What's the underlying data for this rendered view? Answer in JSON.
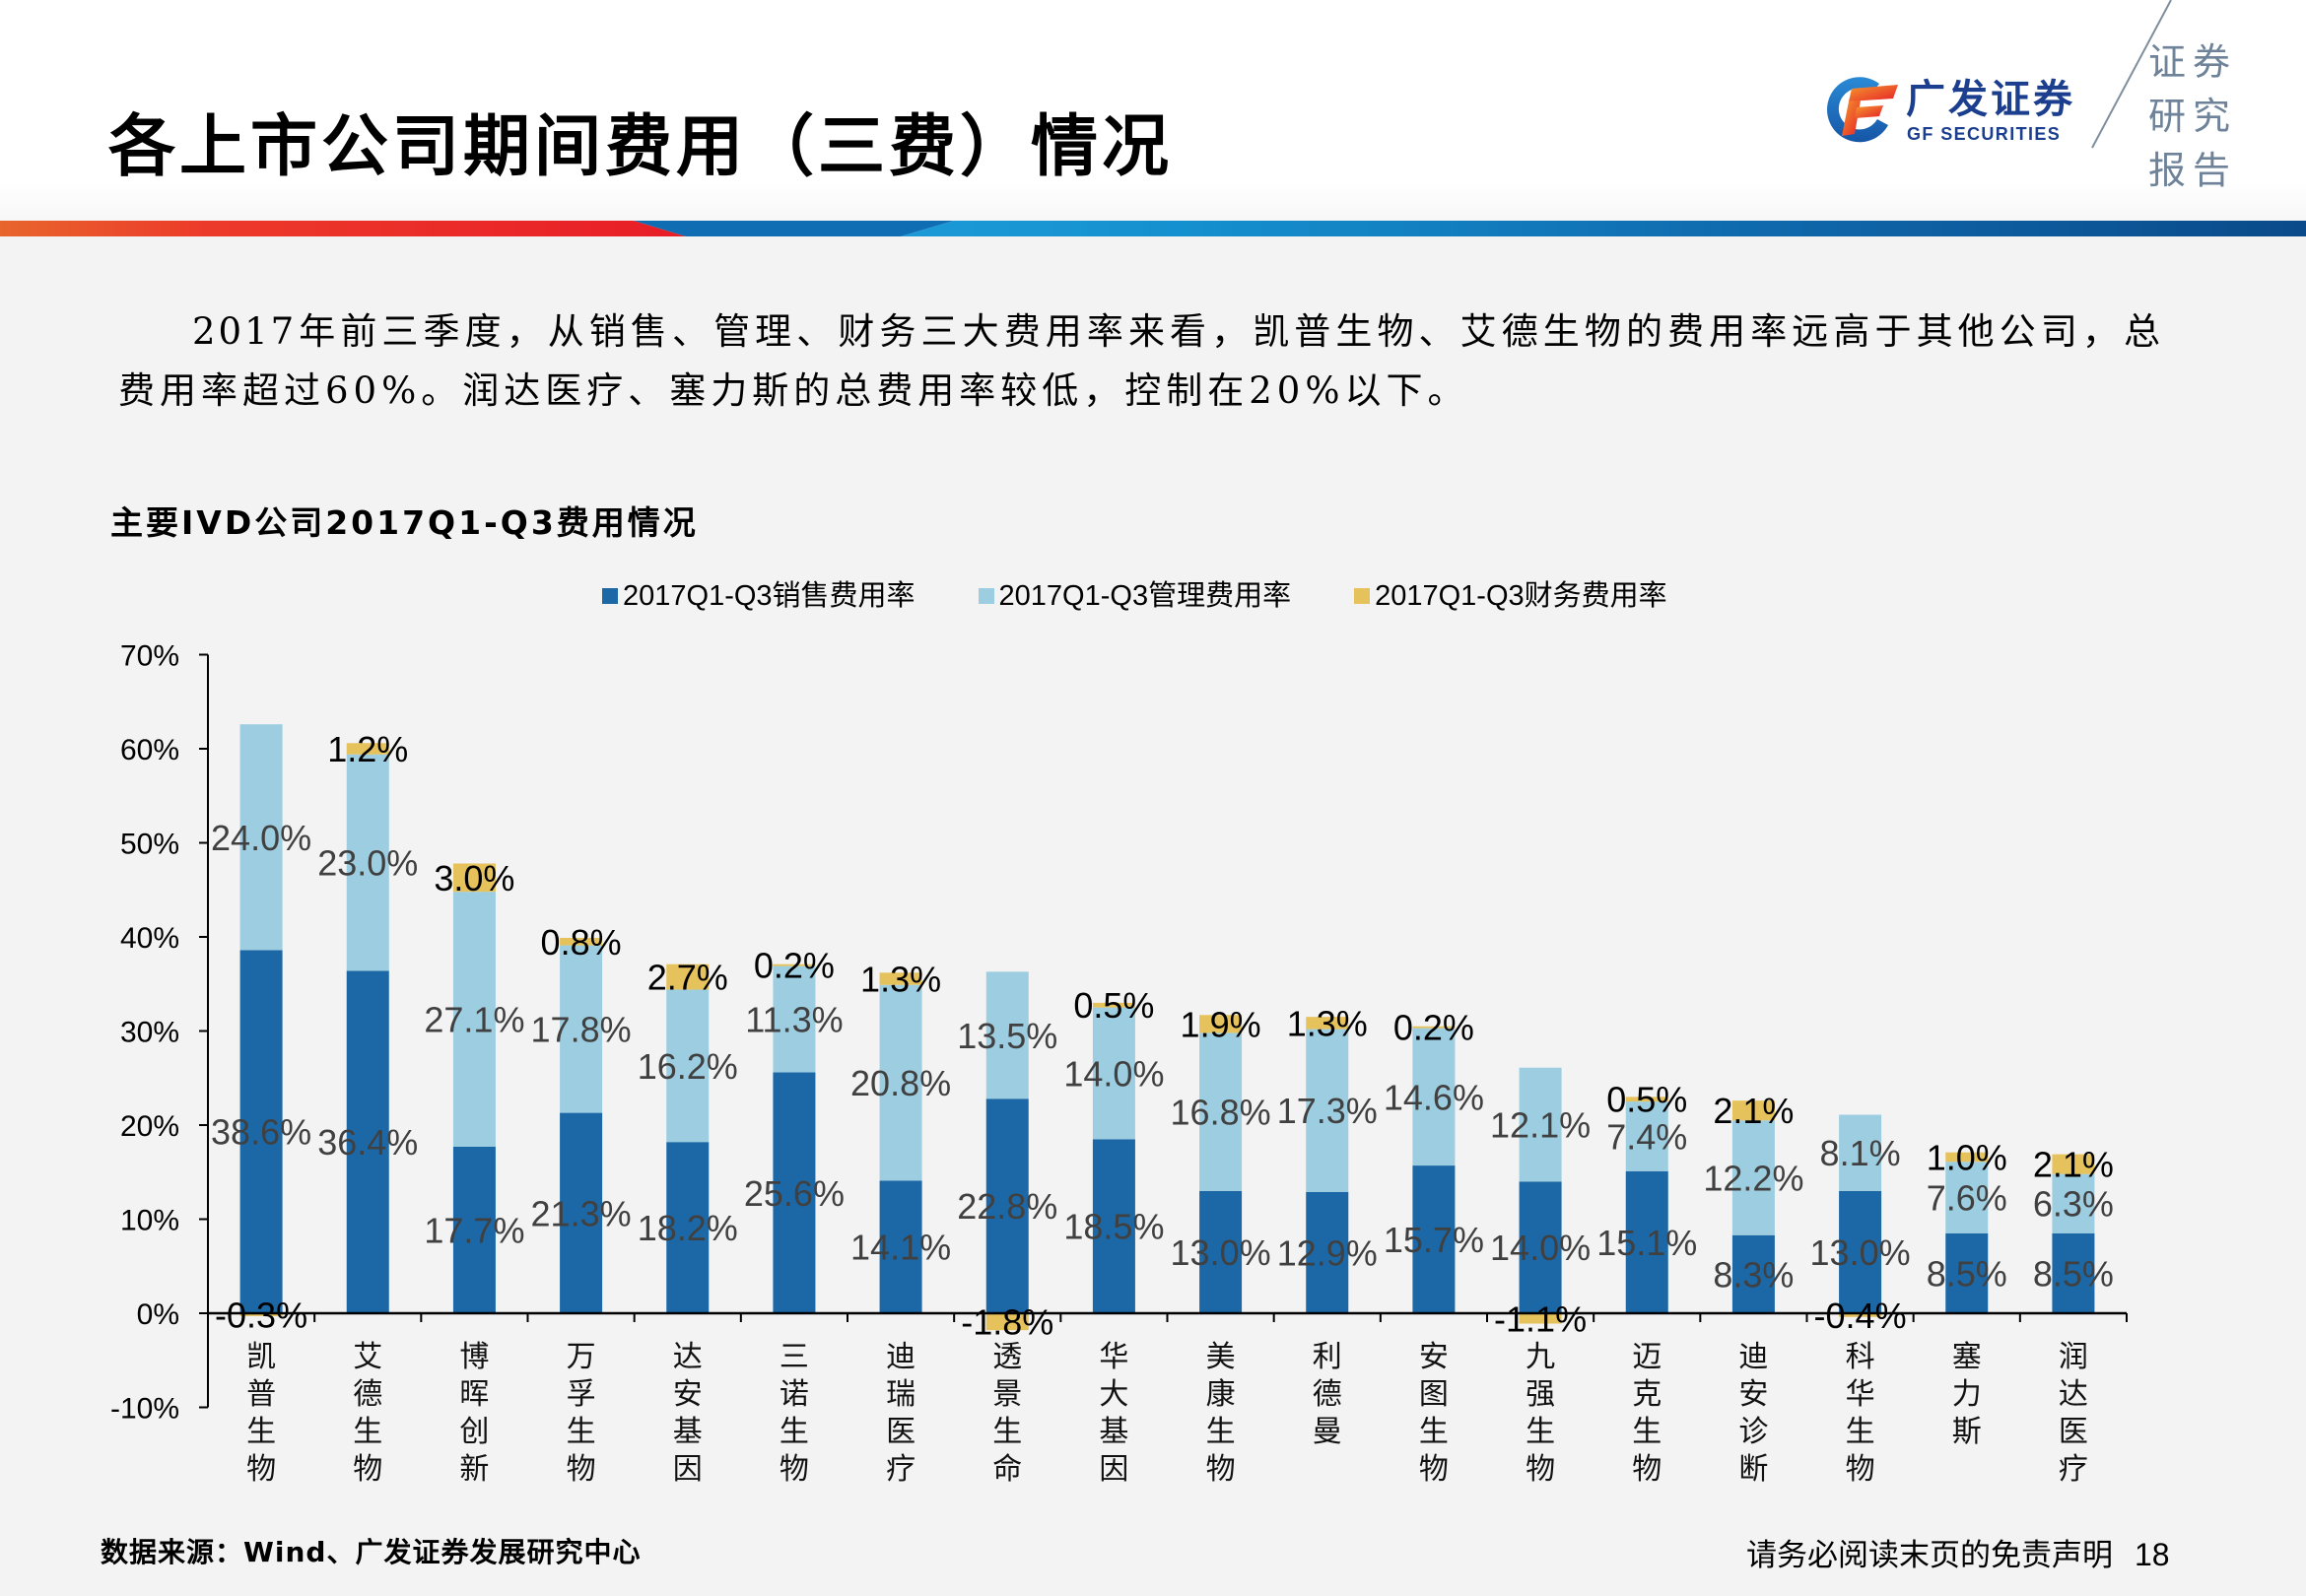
{
  "header": {
    "title": "各上市公司期间费用（三费）情况",
    "logo": {
      "icon": "gf-securities-logo-icon",
      "brand_cn": "广发证券",
      "brand_en": "GF SECURITIES",
      "tagline": [
        "证券",
        "研究",
        "报告"
      ]
    }
  },
  "body": {
    "paragraph_lines": [
      "2017年前三季度，从销售、管理、财务三大费用率来看，凯普生物、艾德生物的费用率远高于其他公司，总",
      "费用率超过60%。润达医疗、塞力斯的总费用率较低，控制在20%以下。"
    ]
  },
  "chart_section": {
    "title": "主要IVD公司2017Q1-Q3费用情况"
  },
  "footer": {
    "source": "数据来源：Wind、广发证券发展研究中心",
    "disclaimer": "请务必阅读末页的免责声明",
    "page_number": "18"
  },
  "colors": {
    "stripe_orange": "#e8652d",
    "stripe_red": "#e81d27",
    "stripe_blue_dark": "#0f6db3",
    "stripe_blue_light": "#1b9ad7",
    "stripe_navy": "#0a4b8c",
    "brand_navy": "#1b3f8e",
    "page_bg": "#f3f3f3"
  },
  "chart_data": {
    "type": "bar",
    "stacked": true,
    "title": "主要IVD公司2017Q1-Q3费用情况",
    "xlabel": "",
    "ylabel": "",
    "unit": "%",
    "ylim": [
      -10,
      70
    ],
    "yticks": [
      -10,
      0,
      10,
      20,
      30,
      40,
      50,
      60,
      70
    ],
    "ytick_labels": [
      "-10%",
      "0%",
      "10%",
      "20%",
      "30%",
      "40%",
      "50%",
      "60%",
      "70%"
    ],
    "grid": false,
    "legend": "top-center",
    "data_labels": true,
    "categories": [
      "凯普生物",
      "艾德生物",
      "博晖创新",
      "万孚生物",
      "达安基因",
      "三诺生物",
      "迪瑞医疗",
      "透景生命",
      "华大基因",
      "美康生物",
      "利德曼",
      "安图生物",
      "九强生物",
      "迈克生物",
      "迪安诊断",
      "科华生物",
      "塞力斯",
      "润达医疗"
    ],
    "series": [
      {
        "key": "sales",
        "name": "2017Q1-Q3销售费用率",
        "color": "#1c68a6",
        "label_color": "#404040",
        "values": [
          38.6,
          36.4,
          17.7,
          21.3,
          18.2,
          25.6,
          14.1,
          22.8,
          18.5,
          13.0,
          12.9,
          15.7,
          14.0,
          15.1,
          8.3,
          13.0,
          8.5,
          8.5
        ]
      },
      {
        "key": "admin",
        "name": "2017Q1-Q3管理费用率",
        "color": "#9dcde0",
        "label_color": "#404040",
        "values": [
          24.0,
          23.0,
          27.1,
          17.8,
          16.2,
          11.3,
          20.8,
          13.5,
          14.0,
          16.8,
          17.3,
          14.6,
          12.1,
          7.4,
          12.2,
          8.1,
          7.6,
          6.3
        ]
      },
      {
        "key": "finance",
        "name": "2017Q1-Q3财务费用率",
        "color": "#e6c25c",
        "label_color": "#000000",
        "values": [
          -0.3,
          1.2,
          3.0,
          0.8,
          2.7,
          0.2,
          1.3,
          -1.8,
          0.5,
          1.9,
          1.3,
          0.2,
          -1.1,
          0.5,
          2.1,
          -0.4,
          1.0,
          2.1
        ]
      }
    ]
  }
}
